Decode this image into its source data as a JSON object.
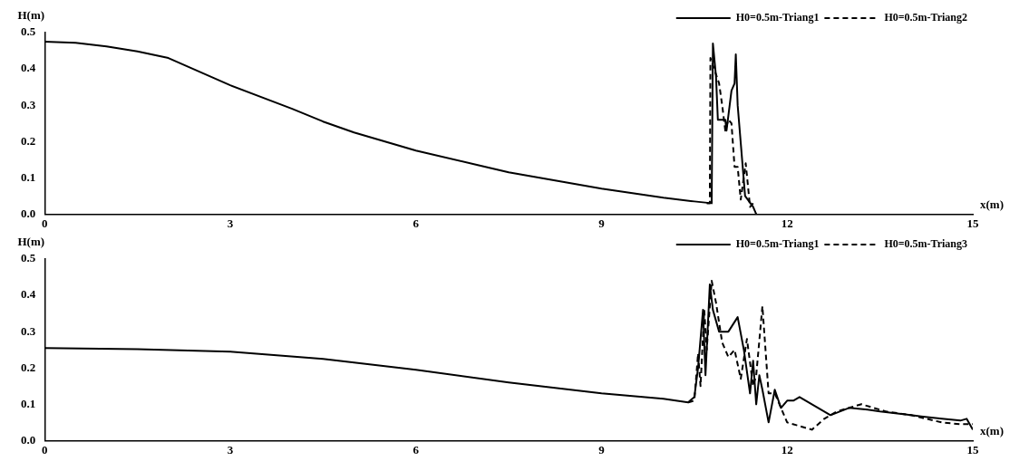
{
  "chart_data": [
    {
      "type": "line",
      "xlabel": "x(m)",
      "ylabel": "H(m)",
      "xlim": [
        0,
        15
      ],
      "xticks": [
        0,
        3,
        6,
        9,
        12,
        15
      ],
      "ylim": [
        0,
        0.5
      ],
      "yticks": [
        {
          "value": 0,
          "label": "0.0"
        },
        0.1,
        0.2,
        0.3,
        0.4,
        0.5
      ],
      "legend": "top right",
      "series": [
        {
          "name": "H0=0.5m-Triang1",
          "color": "#000000",
          "line_style": "solid",
          "x": [
            0,
            0.5,
            1,
            1.5,
            2,
            3,
            4,
            4.5,
            5,
            6,
            7,
            7.5,
            8,
            9,
            10,
            10.5,
            10.78,
            10.8,
            10.85,
            10.88,
            10.95,
            11.0,
            11.02,
            11.1,
            11.15,
            11.17,
            11.2,
            11.32,
            11.45,
            11.5
          ],
          "values": [
            0.475,
            0.472,
            0.462,
            0.448,
            0.43,
            0.355,
            0.29,
            0.255,
            0.225,
            0.175,
            0.135,
            0.115,
            0.1,
            0.07,
            0.045,
            0.035,
            0.03,
            0.47,
            0.38,
            0.26,
            0.26,
            0.26,
            0.23,
            0.34,
            0.36,
            0.44,
            0.3,
            0.05,
            0.02,
            0.0
          ]
        },
        {
          "name": "H0=0.5m-Triang2",
          "color": "#000000",
          "line_style": "dashed",
          "x": [
            10.7,
            10.75,
            10.76,
            10.82,
            10.9,
            10.95,
            11.0,
            11.05,
            11.1,
            11.15,
            11.2,
            11.25,
            11.33,
            11.4,
            11.45
          ],
          "values": [
            0.03,
            0.03,
            0.43,
            0.4,
            0.36,
            0.3,
            0.23,
            0.26,
            0.25,
            0.13,
            0.13,
            0.04,
            0.14,
            0.02,
            0.03
          ]
        }
      ]
    },
    {
      "type": "line",
      "xlabel": "x(m)",
      "ylabel": "H(m)",
      "xlim": [
        0,
        15
      ],
      "xticks": [
        0,
        3,
        6,
        9,
        12,
        15
      ],
      "ylim": [
        0,
        0.5
      ],
      "yticks": [
        {
          "value": 0,
          "label": "0.0"
        },
        0.1,
        0.2,
        0.3,
        0.4,
        0.5
      ],
      "legend": "top right",
      "series": [
        {
          "name": "H0=0.5m-Triang1",
          "color": "#000000",
          "line_style": "solid",
          "x": [
            0,
            1.5,
            3,
            4.5,
            6,
            7.5,
            9,
            10,
            10.4,
            10.5,
            10.56,
            10.64,
            10.68,
            10.75,
            10.8,
            10.9,
            11.05,
            11.2,
            11.3,
            11.4,
            11.45,
            11.5,
            11.55,
            11.6,
            11.7,
            11.8,
            11.9,
            12.0,
            12.1,
            12.2,
            12.3,
            12.5,
            12.7,
            13.0,
            13.3,
            13.5,
            14.0,
            14.5,
            14.8,
            14.9,
            15.0
          ],
          "values": [
            0.255,
            0.252,
            0.245,
            0.225,
            0.195,
            0.16,
            0.13,
            0.115,
            0.105,
            0.12,
            0.2,
            0.36,
            0.18,
            0.43,
            0.36,
            0.3,
            0.3,
            0.34,
            0.25,
            0.13,
            0.22,
            0.1,
            0.18,
            0.14,
            0.05,
            0.14,
            0.09,
            0.11,
            0.11,
            0.12,
            0.11,
            0.09,
            0.07,
            0.09,
            0.085,
            0.08,
            0.07,
            0.06,
            0.055,
            0.06,
            0.03
          ]
        },
        {
          "name": "H0=0.5m-Triang3",
          "color": "#000000",
          "line_style": "dashed",
          "x": [
            10.4,
            10.5,
            10.56,
            10.6,
            10.66,
            10.7,
            10.78,
            10.85,
            10.95,
            11.05,
            11.15,
            11.25,
            11.35,
            11.45,
            11.5,
            11.6,
            11.7,
            11.8,
            12.0,
            12.2,
            12.4,
            12.6,
            12.8,
            13.0,
            13.2,
            13.4,
            13.6,
            14.0,
            14.5,
            14.8,
            15.0
          ],
          "values": [
            0.105,
            0.11,
            0.24,
            0.15,
            0.36,
            0.25,
            0.44,
            0.38,
            0.27,
            0.23,
            0.25,
            0.17,
            0.28,
            0.15,
            0.18,
            0.37,
            0.13,
            0.13,
            0.05,
            0.04,
            0.03,
            0.06,
            0.08,
            0.09,
            0.1,
            0.09,
            0.08,
            0.07,
            0.05,
            0.045,
            0.045
          ]
        }
      ]
    }
  ]
}
